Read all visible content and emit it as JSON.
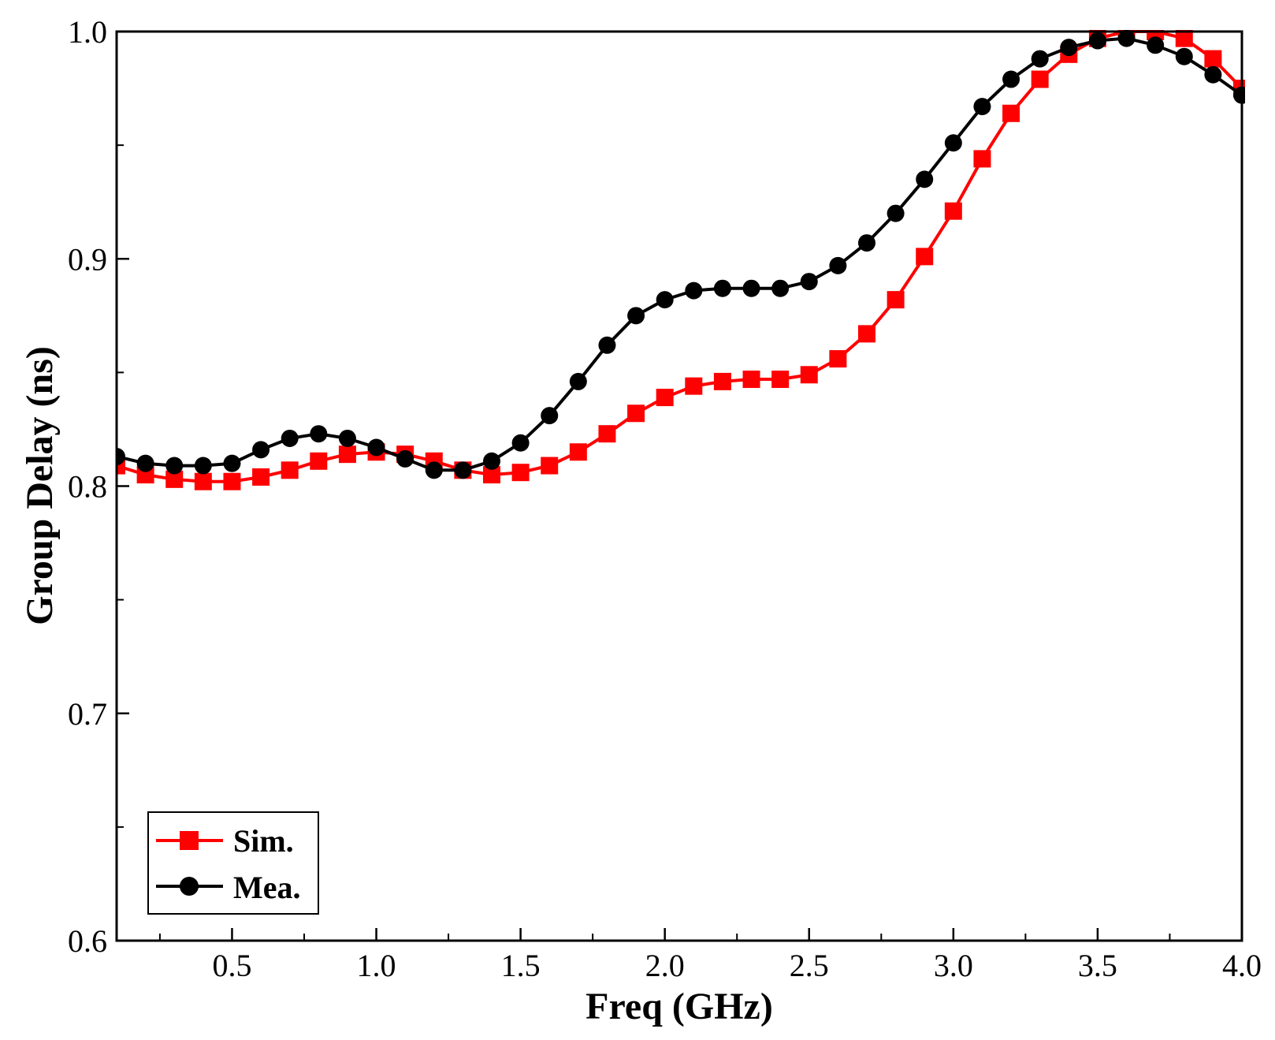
{
  "chart_data": {
    "type": "line",
    "title": "",
    "xlabel": "Freq (GHz)",
    "ylabel": "Group Delay (ns)",
    "xlim": [
      0.1,
      4.0
    ],
    "ylim": [
      0.6,
      1.0
    ],
    "xticks": [
      0.5,
      1.0,
      1.5,
      2.0,
      2.5,
      3.0,
      3.5,
      4.0
    ],
    "xtick_labels": [
      "0.5",
      "1.0",
      "1.5",
      "2.0",
      "2.5",
      "3.0",
      "3.5",
      "4.0"
    ],
    "yticks": [
      0.6,
      0.7,
      0.8,
      0.9,
      1.0
    ],
    "ytick_labels": [
      "0.6",
      "0.7",
      "0.8",
      "0.9",
      "1.0"
    ],
    "grid": false,
    "legend_position": "bottom-left",
    "x": [
      0.1,
      0.2,
      0.3,
      0.4,
      0.5,
      0.6,
      0.7,
      0.8,
      0.9,
      1.0,
      1.1,
      1.2,
      1.3,
      1.4,
      1.5,
      1.6,
      1.7,
      1.8,
      1.9,
      2.0,
      2.1,
      2.2,
      2.3,
      2.4,
      2.5,
      2.6,
      2.7,
      2.8,
      2.9,
      3.0,
      3.1,
      3.2,
      3.3,
      3.4,
      3.5,
      3.6,
      3.7,
      3.8,
      3.9,
      4.0
    ],
    "series": [
      {
        "name": "Sim.",
        "color": "#ff0000",
        "marker": "square",
        "values": [
          0.809,
          0.805,
          0.803,
          0.802,
          0.802,
          0.804,
          0.807,
          0.811,
          0.814,
          0.815,
          0.814,
          0.811,
          0.807,
          0.805,
          0.806,
          0.809,
          0.815,
          0.823,
          0.832,
          0.839,
          0.844,
          0.846,
          0.847,
          0.847,
          0.849,
          0.856,
          0.867,
          0.882,
          0.901,
          0.921,
          0.944,
          0.964,
          0.979,
          0.99,
          0.997,
          1.0,
          1.0,
          0.997,
          0.988,
          0.975
        ]
      },
      {
        "name": "Mea.",
        "color": "#000000",
        "marker": "circle",
        "values": [
          0.813,
          0.81,
          0.809,
          0.809,
          0.81,
          0.816,
          0.821,
          0.823,
          0.821,
          0.817,
          0.812,
          0.807,
          0.807,
          0.811,
          0.819,
          0.831,
          0.846,
          0.862,
          0.875,
          0.882,
          0.886,
          0.887,
          0.887,
          0.887,
          0.89,
          0.897,
          0.907,
          0.92,
          0.935,
          0.951,
          0.967,
          0.979,
          0.988,
          0.993,
          0.996,
          0.997,
          0.994,
          0.989,
          0.981,
          0.972
        ]
      }
    ]
  }
}
